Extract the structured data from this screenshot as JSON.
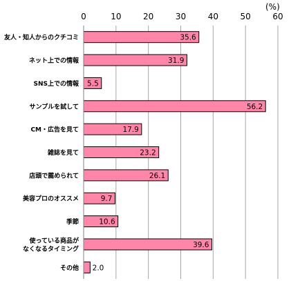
{
  "chart_data": {
    "type": "bar",
    "orientation": "horizontal",
    "unit": "(%)",
    "categories": [
      [
        "友人・知人からのクチコミ"
      ],
      [
        "ネット上での情報"
      ],
      [
        "SNS上での情報"
      ],
      [
        "サンプルを試して"
      ],
      [
        "CM・広告を見て"
      ],
      [
        "雑誌を見て"
      ],
      [
        "店頭で薦められて"
      ],
      [
        "美容プロのオススメ"
      ],
      [
        "季節"
      ],
      [
        "使っている商品が",
        "なくなるタイミング"
      ],
      [
        "その他"
      ]
    ],
    "values": [
      35.6,
      31.9,
      5.5,
      56.2,
      17.9,
      23.2,
      26.1,
      9.7,
      10.6,
      39.6,
      2.0
    ],
    "value_labels": [
      "35.6",
      "31.9",
      "5.5",
      "56.2",
      "17.9",
      "23.2",
      "26.1",
      "9.7",
      "10.6",
      "39.6",
      "2.0"
    ],
    "xlim": [
      0,
      60
    ],
    "xticks": [
      "0",
      "10",
      "20",
      "30",
      "40",
      "50",
      "60"
    ],
    "xtick_values": [
      0,
      10,
      20,
      30,
      40,
      50,
      60
    ],
    "grid": true,
    "colors": {
      "bar_fill": "#FF85A9",
      "bar_stroke": "#000000",
      "grid": "#A6A6A6",
      "axis": "#808080"
    }
  }
}
